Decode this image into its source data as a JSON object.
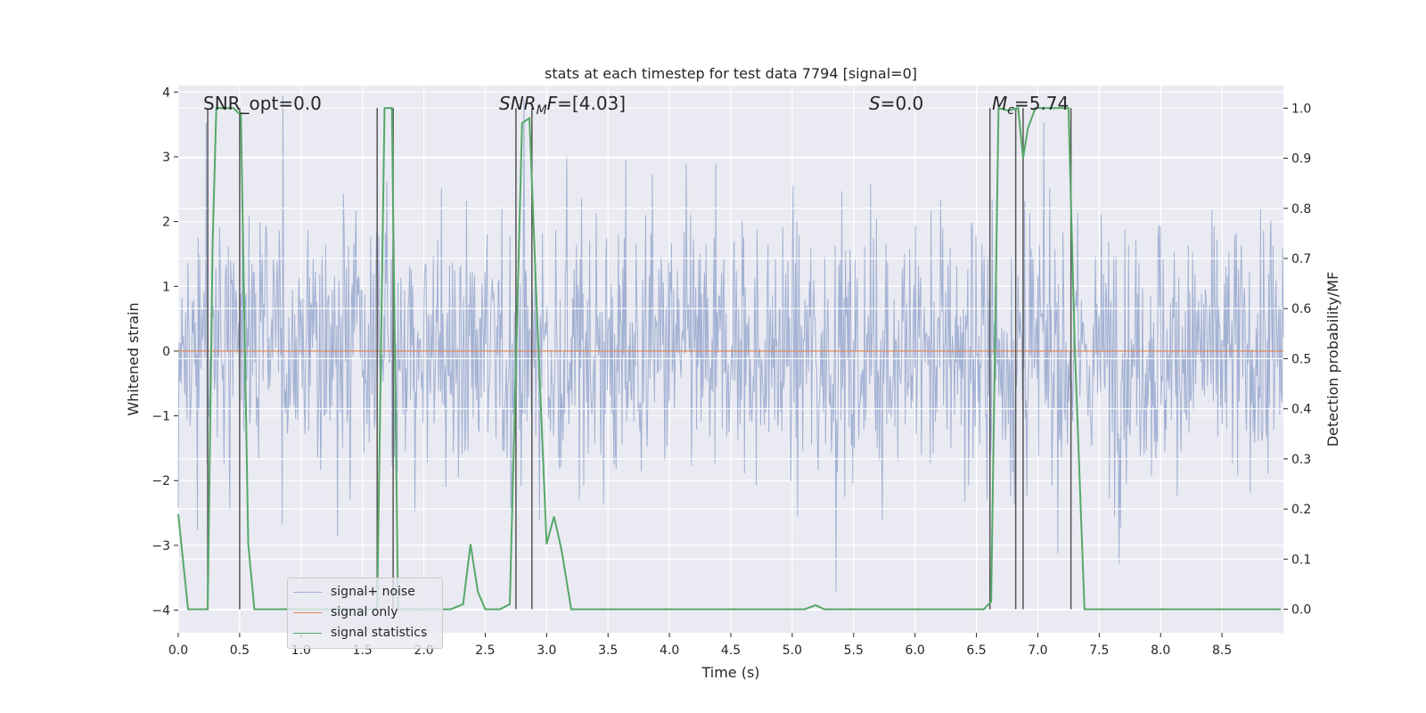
{
  "chart_data": {
    "type": "line",
    "title": "stats at each timestep for test data 7794 [signal=0]",
    "xlabel": "Time (s)",
    "ylabel_left": "Whitened strain",
    "ylabel_right": "Detection probability/MF",
    "xlim": [
      0.0,
      9.0
    ],
    "ylim_left": [
      -4.35,
      4.1
    ],
    "ylim_right": [
      -0.047,
      1.045
    ],
    "x_ticks": [
      "0.0",
      "0.5",
      "1.0",
      "1.5",
      "2.0",
      "2.5",
      "3.0",
      "3.5",
      "4.0",
      "4.5",
      "5.0",
      "5.5",
      "6.0",
      "6.5",
      "7.0",
      "7.5",
      "8.0",
      "8.5"
    ],
    "y_ticks_left": [
      "4",
      "3",
      "2",
      "1",
      "0",
      "−1",
      "−2",
      "−3",
      "−4"
    ],
    "y_ticks_right": [
      "1.0",
      "0.9",
      "0.8",
      "0.7",
      "0.6",
      "0.5",
      "0.4",
      "0.3",
      "0.2",
      "0.1",
      "0.0"
    ],
    "grid": true,
    "legend_position": "lower-left",
    "annotations": {
      "snr_opt": "SNR_opt=0.0",
      "snr_mf_italic": "SNR",
      "snr_mf_sub": "M",
      "snr_mf_italic2": "F",
      "snr_mf_value": "=[4.03]",
      "s_italic": "S",
      "s_value": "=0.0",
      "mc_italic": "M",
      "mc_sub": "c",
      "mc_value": "=5.74"
    },
    "series": [
      {
        "name": "signal+ noise",
        "color": "#9aabcf",
        "axis": "left",
        "description_envelope": {
          "typical_amplitude": 1.5,
          "max_abs": 3.96
        }
      },
      {
        "name": "signal only",
        "color": "#dd8452",
        "axis": "left",
        "values": [
          0,
          0
        ]
      },
      {
        "name": "signal statistics",
        "color": "#55a868",
        "axis": "right",
        "points": [
          [
            0.0,
            0.19
          ],
          [
            0.08,
            0.0
          ],
          [
            0.24,
            0.0
          ],
          [
            0.28,
            0.73
          ],
          [
            0.31,
            1.0
          ],
          [
            0.45,
            1.0
          ],
          [
            0.49,
            0.99
          ],
          [
            0.51,
            0.99
          ],
          [
            0.57,
            0.13
          ],
          [
            0.62,
            0.0
          ],
          [
            1.55,
            0.0
          ],
          [
            1.62,
            0.0
          ],
          [
            1.68,
            1.0
          ],
          [
            1.74,
            1.0
          ],
          [
            1.79,
            0.0
          ],
          [
            2.22,
            0.0
          ],
          [
            2.32,
            0.01
          ],
          [
            2.38,
            0.13
          ],
          [
            2.44,
            0.035
          ],
          [
            2.5,
            0.0
          ],
          [
            2.62,
            0.0
          ],
          [
            2.7,
            0.01
          ],
          [
            2.8,
            0.97
          ],
          [
            2.86,
            0.98
          ],
          [
            2.92,
            0.6
          ],
          [
            3.0,
            0.13
          ],
          [
            3.06,
            0.185
          ],
          [
            3.12,
            0.12
          ],
          [
            3.2,
            0.0
          ],
          [
            5.1,
            0.0
          ],
          [
            5.19,
            0.008
          ],
          [
            5.26,
            0.0
          ],
          [
            6.56,
            0.0
          ],
          [
            6.62,
            0.015
          ],
          [
            6.68,
            1.0
          ],
          [
            6.76,
            0.995
          ],
          [
            6.84,
            1.0
          ],
          [
            6.88,
            0.9
          ],
          [
            6.92,
            0.96
          ],
          [
            6.98,
            1.0
          ],
          [
            7.25,
            1.0
          ],
          [
            7.3,
            0.53
          ],
          [
            7.38,
            0.0
          ],
          [
            8.98,
            0.0
          ]
        ]
      }
    ],
    "vertical_lines": [
      0.24,
      0.5,
      1.62,
      1.75,
      2.75,
      2.88,
      6.61,
      6.82,
      6.88,
      7.27
    ]
  },
  "legend": {
    "items": [
      {
        "label": "signal+ noise",
        "color": "#9aabcf"
      },
      {
        "label": "signal only",
        "color": "#dd8452"
      },
      {
        "label": "signal statistics",
        "color": "#55a868"
      }
    ]
  }
}
